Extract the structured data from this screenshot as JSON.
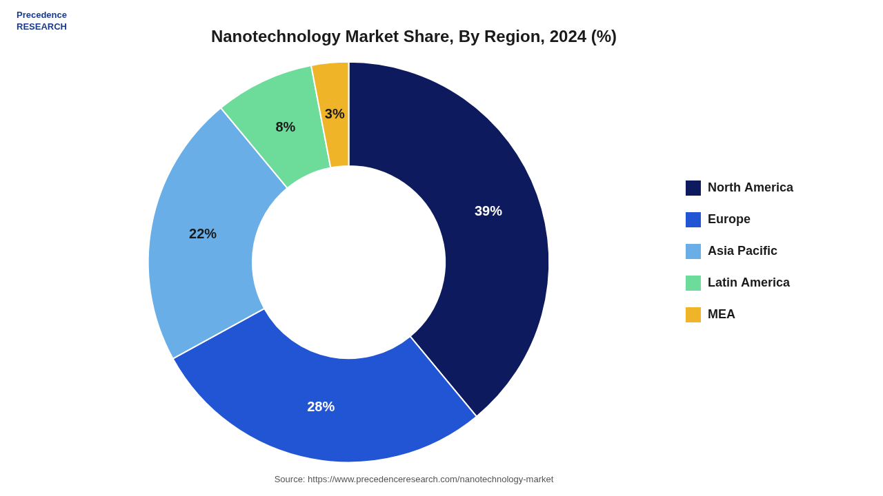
{
  "chart_data": {
    "type": "doughnut",
    "title": "Nanotechnology Market Share, By Region, 2024 (%)",
    "categories": [
      "North America",
      "Europe",
      "Asia Pacific",
      "Latin America",
      "MEA"
    ],
    "values": [
      39,
      28,
      22,
      8,
      3
    ],
    "value_labels": [
      "39%",
      "28%",
      "22%",
      "8%",
      "3%"
    ],
    "colors": [
      "#0d1b5e",
      "#2155d4",
      "#6aaee8",
      "#6ddc9a",
      "#f0b429"
    ],
    "data_labels": true,
    "legend": "right",
    "annotations": [
      "Precedence\nRESEARCH",
      "Source: https://www.precedenceresearch.com/nanotechnology-market"
    ]
  }
}
